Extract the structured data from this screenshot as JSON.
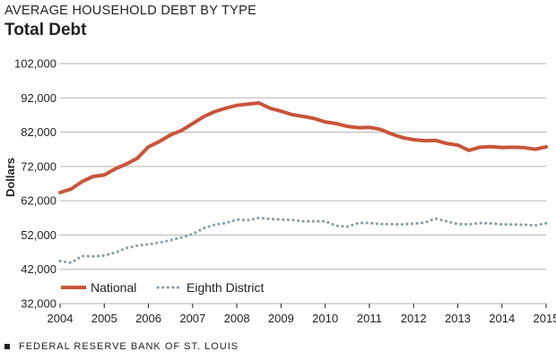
{
  "header": {
    "kicker": "AVERAGE HOUSEHOLD DEBT BY TYPE",
    "title": "Total Debt"
  },
  "footer": {
    "source": "FEDERAL RESERVE BANK OF ST. LOUIS"
  },
  "colors": {
    "national": "#c8553a",
    "eighth_district": "#7f9ba4",
    "grid": "#b3b3b3",
    "text": "#231f20"
  },
  "chart_data": {
    "type": "line",
    "title": "Total Debt",
    "ylabel": "Dollars",
    "xlabel": "",
    "ylim": [
      32000,
      102000
    ],
    "xlim": [
      2004,
      2015
    ],
    "y_ticks": [
      32000,
      42000,
      52000,
      62000,
      72000,
      82000,
      92000,
      102000
    ],
    "y_tick_labels": [
      "32,000",
      "42,000",
      "52,000",
      "62,000",
      "72,000",
      "82,000",
      "92,000",
      "102,000"
    ],
    "x_ticks": [
      2004,
      2005,
      2006,
      2007,
      2008,
      2009,
      2010,
      2011,
      2012,
      2013,
      2014,
      2015
    ],
    "x_tick_labels": [
      "2004",
      "2005",
      "2006",
      "2007",
      "2008",
      "2009",
      "2010",
      "2011",
      "2012",
      "2013",
      "2014",
      "2015"
    ],
    "grid": true,
    "legend_position": "bottom-left",
    "series": [
      {
        "name": "National",
        "style": "solid",
        "x": [
          2004.0,
          2004.25,
          2004.5,
          2004.75,
          2005.0,
          2005.25,
          2005.5,
          2005.75,
          2006.0,
          2006.25,
          2006.5,
          2006.75,
          2007.0,
          2007.25,
          2007.5,
          2007.75,
          2008.0,
          2008.25,
          2008.5,
          2008.75,
          2009.0,
          2009.25,
          2009.5,
          2009.75,
          2010.0,
          2010.25,
          2010.5,
          2010.75,
          2011.0,
          2011.25,
          2011.5,
          2011.75,
          2012.0,
          2012.25,
          2012.5,
          2012.75,
          2013.0,
          2013.25,
          2013.5,
          2013.75,
          2014.0,
          2014.25,
          2014.5,
          2014.75,
          2015.0
        ],
        "values": [
          64400,
          65400,
          67600,
          69100,
          69500,
          71300,
          72700,
          74400,
          77700,
          79300,
          81200,
          82500,
          84500,
          86500,
          88000,
          89000,
          89800,
          90200,
          90500,
          89000,
          88100,
          87100,
          86600,
          86000,
          85000,
          84500,
          83700,
          83300,
          83400,
          82800,
          81500,
          80400,
          79800,
          79500,
          79600,
          78700,
          78200,
          76700,
          77600,
          77800,
          77500,
          77600,
          77500,
          77000,
          77700
        ]
      },
      {
        "name": "Eighth District",
        "style": "dotted",
        "x": [
          2004.0,
          2004.25,
          2004.5,
          2004.75,
          2005.0,
          2005.25,
          2005.5,
          2005.75,
          2006.0,
          2006.25,
          2006.5,
          2006.75,
          2007.0,
          2007.25,
          2007.5,
          2007.75,
          2008.0,
          2008.25,
          2008.5,
          2008.75,
          2009.0,
          2009.25,
          2009.5,
          2009.75,
          2010.0,
          2010.25,
          2010.5,
          2010.75,
          2011.0,
          2011.25,
          2011.5,
          2011.75,
          2012.0,
          2012.25,
          2012.5,
          2012.75,
          2013.0,
          2013.25,
          2013.5,
          2013.75,
          2014.0,
          2014.25,
          2014.5,
          2014.75,
          2015.0
        ],
        "values": [
          44400,
          43900,
          45900,
          45800,
          46000,
          46900,
          48200,
          48900,
          49300,
          49800,
          50500,
          51300,
          52300,
          54000,
          55000,
          55500,
          56500,
          56300,
          57000,
          56700,
          56500,
          56400,
          56000,
          56000,
          56000,
          54700,
          54400,
          55500,
          55500,
          55200,
          55200,
          55100,
          55300,
          55600,
          56800,
          56000,
          55200,
          55100,
          55500,
          55400,
          55100,
          55100,
          55000,
          54800,
          55400
        ]
      }
    ]
  }
}
